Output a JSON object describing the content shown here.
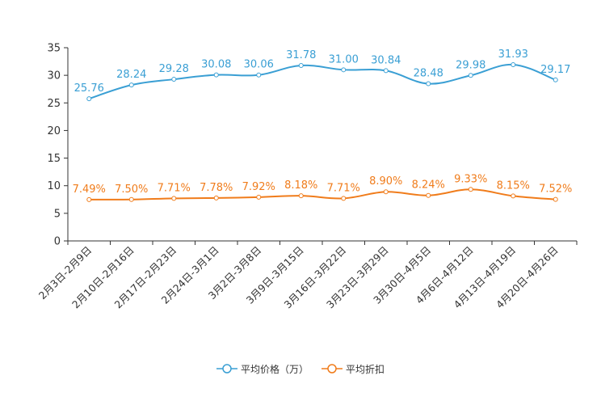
{
  "chart_data": {
    "type": "line",
    "title": "",
    "categories": [
      "2月3日-2月9日",
      "2月10日-2月16日",
      "2月17日-2月23日",
      "2月24日-3月1日",
      "3月2日-3月8日",
      "3月9日-3月15日",
      "3月16日-3月22日",
      "3月23日-3月29日",
      "3月30日-4月5日",
      "4月6日-4月12日",
      "4月13日-4月19日",
      "4月20日-4月26日"
    ],
    "ylim": [
      0,
      35
    ],
    "yticks": [
      0,
      5,
      10,
      15,
      20,
      25,
      30,
      35
    ],
    "series": [
      {
        "name": "平均价格（万）",
        "color": "#3a9fd4",
        "values": [
          25.76,
          28.24,
          29.28,
          30.08,
          30.06,
          31.78,
          31.0,
          30.84,
          28.48,
          29.98,
          31.93,
          29.17
        ],
        "labels": [
          "25.76",
          "28.24",
          "29.28",
          "30.08",
          "30.06",
          "31.78",
          "31.00",
          "30.84",
          "28.48",
          "29.98",
          "31.93",
          "29.17"
        ]
      },
      {
        "name": "平均折扣",
        "color": "#f07c1b",
        "values": [
          7.49,
          7.5,
          7.71,
          7.78,
          7.92,
          8.18,
          7.71,
          8.9,
          8.24,
          9.33,
          8.15,
          7.52
        ],
        "labels": [
          "7.49%",
          "7.50%",
          "7.71%",
          "7.78%",
          "7.92%",
          "8.18%",
          "7.71%",
          "8.90%",
          "8.24%",
          "9.33%",
          "8.15%",
          "7.52%"
        ]
      }
    ],
    "legend_position": "bottom"
  }
}
